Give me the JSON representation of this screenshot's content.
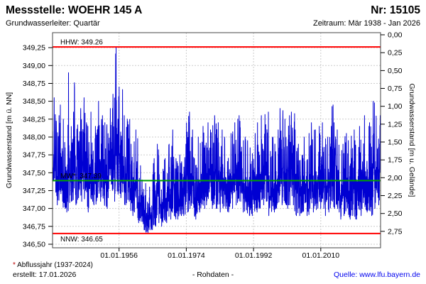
{
  "header": {
    "title": "Messstelle: WOEHR 145 A",
    "number": "Nr: 15105",
    "aquifer": "Grundwasserleiter: Quartär",
    "period": "Zeitraum: Mär 1938 - Jan 2026"
  },
  "footer": {
    "footnote_star": "*",
    "footnote": " Abflussjahr (1937-2024)",
    "created": "erstellt: 17.01.2026",
    "center": "- Rohdaten -",
    "source": "Quelle: www.lfu.bayern.de"
  },
  "colors": {
    "grid": "#cccccc",
    "frame": "#444444",
    "tick": "#000000",
    "text": "#000000",
    "link": "#0000ee",
    "footnote_star": "#bb0000",
    "background": "#ffffff"
  },
  "chart_data": {
    "type": "line",
    "title": "",
    "ylabel_left": "Grundwasserstand [m ü. NN]",
    "ylabel_right": "Grundwasserstand [m u. Gelände]",
    "ylim_left": [
      346.45,
      349.46
    ],
    "ground_elevation": 349.43,
    "x_range": [
      1938.2,
      2026.0
    ],
    "grid": true,
    "legend": "none",
    "y_left_ticks": [
      {
        "value": 349.25,
        "label": "349,25"
      },
      {
        "value": 349.0,
        "label": "349,00"
      },
      {
        "value": 348.75,
        "label": "348,75"
      },
      {
        "value": 348.5,
        "label": "348,50"
      },
      {
        "value": 348.25,
        "label": "348,25"
      },
      {
        "value": 348.0,
        "label": "348,00"
      },
      {
        "value": 347.75,
        "label": "347,75"
      },
      {
        "value": 347.5,
        "label": "347,50"
      },
      {
        "value": 347.25,
        "label": "347,25"
      },
      {
        "value": 347.0,
        "label": "347,00"
      },
      {
        "value": 346.75,
        "label": "346,75"
      },
      {
        "value": 346.5,
        "label": "346,50"
      }
    ],
    "y_right_ticks": [
      {
        "depth": 0.0,
        "label": "0,00"
      },
      {
        "depth": 0.25,
        "label": "0,25"
      },
      {
        "depth": 0.5,
        "label": "0,50"
      },
      {
        "depth": 0.75,
        "label": "0,75"
      },
      {
        "depth": 1.0,
        "label": "1,00"
      },
      {
        "depth": 1.25,
        "label": "1,25"
      },
      {
        "depth": 1.5,
        "label": "1,50"
      },
      {
        "depth": 1.75,
        "label": "1,75"
      },
      {
        "depth": 2.0,
        "label": "2,00"
      },
      {
        "depth": 2.25,
        "label": "2,25"
      },
      {
        "depth": 2.5,
        "label": "2,50"
      },
      {
        "depth": 2.75,
        "label": "2,75"
      }
    ],
    "x_ticks": [
      {
        "year": 1956,
        "label": "01.01.1956"
      },
      {
        "year": 1974,
        "label": "01.01.1974"
      },
      {
        "year": 1992,
        "label": "01.01.1992"
      },
      {
        "year": 2010,
        "label": "01.01.2010"
      }
    ],
    "reference_lines": [
      {
        "name": "HHW",
        "label": "HHW: 349.26",
        "value": 349.26,
        "color": "#ff0000",
        "label_side": "above"
      },
      {
        "name": "MW",
        "label": "MW*: 347.39",
        "value": 347.39,
        "color": "#00a000",
        "label_side": "above"
      },
      {
        "name": "NNW",
        "label": "NNW: 346.65",
        "value": 346.65,
        "color": "#ff0000",
        "label_side": "below"
      }
    ],
    "series": {
      "name": "Grundwasserstand Rohdaten",
      "color": "#0000d2",
      "samples_per_year": 26,
      "yearly_envelope": [
        [
          1938,
          347.15,
          348.55
        ],
        [
          1939,
          347.05,
          348.3
        ],
        [
          1940,
          347.1,
          348.45
        ],
        [
          1941,
          347.0,
          348.25
        ],
        [
          1942,
          346.95,
          348.9
        ],
        [
          1943,
          347.1,
          348.35
        ],
        [
          1944,
          347.05,
          348.76
        ],
        [
          1945,
          347.15,
          348.4
        ],
        [
          1946,
          347.1,
          348.55
        ],
        [
          1947,
          346.95,
          348.2
        ],
        [
          1948,
          347.1,
          348.35
        ],
        [
          1949,
          347.05,
          348.15
        ],
        [
          1950,
          347.15,
          348.5
        ],
        [
          1951,
          347.1,
          348.3
        ],
        [
          1952,
          347.0,
          348.2
        ],
        [
          1953,
          347.15,
          348.4
        ],
        [
          1954,
          347.1,
          348.6
        ],
        [
          1955,
          347.2,
          349.25
        ],
        [
          1956,
          347.15,
          348.7
        ],
        [
          1957,
          347.05,
          348.3
        ],
        [
          1958,
          347.1,
          348.25
        ],
        [
          1959,
          346.9,
          347.9
        ],
        [
          1960,
          346.95,
          348.1
        ],
        [
          1961,
          346.8,
          347.6
        ],
        [
          1962,
          346.7,
          347.4
        ],
        [
          1963,
          346.65,
          347.35
        ],
        [
          1964,
          346.7,
          347.3
        ],
        [
          1965,
          346.75,
          347.7
        ],
        [
          1966,
          346.8,
          347.9
        ],
        [
          1967,
          346.75,
          347.55
        ],
        [
          1968,
          346.8,
          347.7
        ],
        [
          1969,
          346.85,
          347.9
        ],
        [
          1970,
          346.9,
          348.1
        ],
        [
          1971,
          346.85,
          347.7
        ],
        [
          1972,
          346.9,
          347.75
        ],
        [
          1973,
          346.9,
          347.9
        ],
        [
          1974,
          346.95,
          348.35
        ],
        [
          1975,
          347.0,
          348.1
        ],
        [
          1976,
          346.85,
          347.7
        ],
        [
          1977,
          346.95,
          348.0
        ],
        [
          1978,
          347.0,
          348.15
        ],
        [
          1979,
          347.05,
          348.2
        ],
        [
          1980,
          347.0,
          348.1
        ],
        [
          1981,
          347.05,
          348.3
        ],
        [
          1982,
          347.0,
          348.2
        ],
        [
          1983,
          346.95,
          348.1
        ],
        [
          1984,
          347.0,
          348.0
        ],
        [
          1985,
          346.95,
          348.05
        ],
        [
          1986,
          347.0,
          348.2
        ],
        [
          1987,
          347.05,
          348.25
        ],
        [
          1988,
          347.1,
          348.3
        ],
        [
          1989,
          346.95,
          348.0
        ],
        [
          1990,
          346.9,
          347.95
        ],
        [
          1991,
          346.9,
          347.85
        ],
        [
          1992,
          346.95,
          348.05
        ],
        [
          1993,
          347.0,
          348.2
        ],
        [
          1994,
          347.05,
          348.3
        ],
        [
          1995,
          347.1,
          348.35
        ],
        [
          1996,
          346.9,
          347.8
        ],
        [
          1997,
          346.95,
          348.0
        ],
        [
          1998,
          347.0,
          348.1
        ],
        [
          1999,
          347.05,
          348.4
        ],
        [
          2000,
          347.05,
          348.25
        ],
        [
          2001,
          347.0,
          348.3
        ],
        [
          2002,
          347.05,
          348.35
        ],
        [
          2003,
          346.9,
          348.1
        ],
        [
          2004,
          346.9,
          347.9
        ],
        [
          2005,
          346.95,
          348.0
        ],
        [
          2006,
          346.9,
          348.05
        ],
        [
          2007,
          347.0,
          348.2
        ],
        [
          2008,
          346.95,
          348.1
        ],
        [
          2009,
          347.0,
          348.15
        ],
        [
          2010,
          347.0,
          348.2
        ],
        [
          2011,
          346.9,
          348.0
        ],
        [
          2012,
          346.95,
          348.15
        ],
        [
          2013,
          347.0,
          348.45
        ],
        [
          2014,
          346.95,
          348.1
        ],
        [
          2015,
          346.85,
          347.9
        ],
        [
          2016,
          346.9,
          348.05
        ],
        [
          2017,
          346.85,
          347.95
        ],
        [
          2018,
          346.9,
          348.1
        ],
        [
          2019,
          346.85,
          347.95
        ],
        [
          2020,
          346.9,
          348.15
        ],
        [
          2021,
          347.0,
          348.3
        ],
        [
          2022,
          346.95,
          348.15
        ],
        [
          2023,
          346.9,
          348.2
        ],
        [
          2024,
          347.0,
          348.5
        ],
        [
          2025,
          347.05,
          348.3
        ]
      ]
    }
  }
}
